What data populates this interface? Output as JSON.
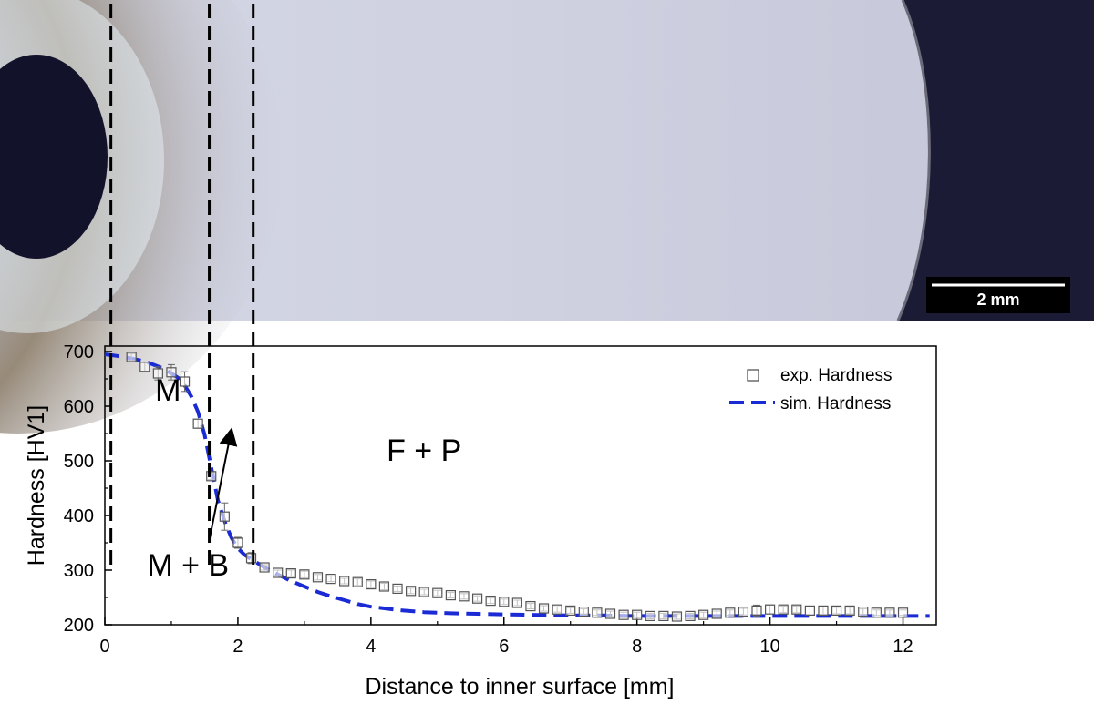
{
  "micrograph": {
    "scale_bar_label": "2 mm",
    "boundaries_mm": [
      0.05,
      1.57,
      2.23
    ]
  },
  "chart_data": {
    "type": "scatter",
    "title": "",
    "xlabel": "Distance to inner surface [mm]",
    "ylabel": "Hardness [HV1]",
    "xlim": [
      0,
      12.5
    ],
    "ylim": [
      200,
      710
    ],
    "xticks": [
      0,
      2,
      4,
      6,
      8,
      10,
      12
    ],
    "yticks": [
      200,
      300,
      400,
      500,
      600,
      700
    ],
    "grid": false,
    "legend_position": "top-right",
    "series": [
      {
        "name": "exp. Hardness",
        "kind": "scatter-errorbars",
        "x": [
          0.4,
          0.6,
          0.8,
          1.0,
          1.2,
          1.4,
          1.6,
          1.8,
          2.0,
          2.2,
          2.4,
          2.6,
          2.8,
          3.0,
          3.2,
          3.4,
          3.6,
          3.8,
          4.0,
          4.2,
          4.4,
          4.6,
          4.8,
          5.0,
          5.2,
          5.4,
          5.6,
          5.8,
          6.0,
          6.2,
          6.4,
          6.6,
          6.8,
          7.0,
          7.2,
          7.4,
          7.6,
          7.8,
          8.0,
          8.2,
          8.4,
          8.6,
          8.8,
          9.0,
          9.2,
          9.4,
          9.6,
          9.8,
          10.0,
          10.2,
          10.4,
          10.6,
          10.8,
          11.0,
          11.2,
          11.4,
          11.6,
          11.8,
          12.0
        ],
        "y": [
          690,
          672,
          660,
          662,
          645,
          568,
          472,
          398,
          350,
          322,
          305,
          295,
          294,
          292,
          287,
          284,
          280,
          278,
          274,
          270,
          266,
          262,
          260,
          258,
          254,
          252,
          248,
          244,
          242,
          240,
          234,
          230,
          228,
          226,
          224,
          222,
          220,
          218,
          218,
          216,
          216,
          215,
          216,
          218,
          220,
          222,
          224,
          226,
          228,
          228,
          228,
          226,
          226,
          226,
          226,
          224,
          222,
          222,
          222
        ],
        "err": [
          6,
          8,
          12,
          14,
          18,
          8,
          6,
          25,
          10,
          10,
          5,
          5,
          6,
          6,
          5,
          5,
          5,
          6,
          6,
          6,
          5,
          5,
          5,
          5,
          5,
          5,
          5,
          5,
          5,
          5,
          5,
          5,
          5,
          5,
          5,
          5,
          5,
          5,
          5,
          5,
          5,
          5,
          5,
          5,
          5,
          5,
          6,
          10,
          8,
          6,
          6,
          8,
          8,
          6,
          6,
          5,
          5,
          5,
          5
        ]
      },
      {
        "name": "sim. Hardness",
        "kind": "dashed-line",
        "color": "#1a2bd6",
        "x": [
          0,
          0.3,
          0.6,
          0.9,
          1.1,
          1.2,
          1.3,
          1.4,
          1.5,
          1.6,
          1.7,
          1.8,
          1.9,
          2.0,
          2.1,
          2.2,
          2.4,
          2.6,
          2.8,
          3.0,
          3.2,
          3.4,
          3.6,
          3.8,
          4.0,
          4.4,
          4.8,
          5.2,
          5.6,
          6.0,
          6.5,
          7.0,
          7.5,
          8.0,
          9.0,
          10.0,
          11.0,
          12.0,
          12.4
        ],
        "y": [
          695,
          690,
          682,
          668,
          652,
          638,
          618,
          590,
          548,
          488,
          428,
          390,
          360,
          340,
          328,
          320,
          305,
          292,
          280,
          270,
          260,
          252,
          245,
          238,
          233,
          227,
          223,
          221,
          220,
          219,
          218,
          217,
          217,
          216,
          216,
          216,
          216,
          216,
          216
        ]
      }
    ],
    "annotations": [
      {
        "text": "M",
        "x": 0.95,
        "y": 610
      },
      {
        "text": "M + B",
        "x": 1.25,
        "y": 290
      },
      {
        "text": "F + P",
        "x": 4.8,
        "y": 500
      }
    ],
    "arrow": {
      "from": [
        1.57,
        355
      ],
      "to": [
        1.9,
        555
      ]
    }
  }
}
